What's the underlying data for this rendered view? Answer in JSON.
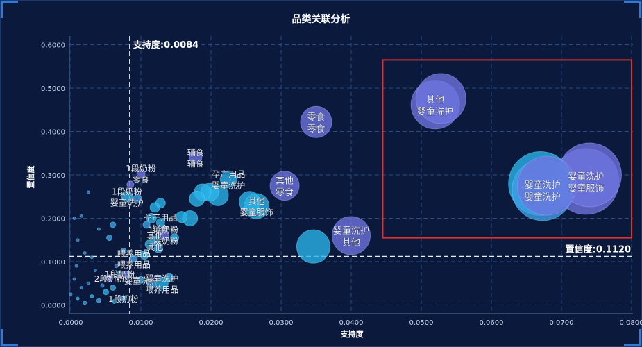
{
  "chart_data": {
    "type": "scatter",
    "title": "品类关联分析",
    "xlabel": "支持度",
    "ylabel": "置信度",
    "xlim": [
      -0.0002,
      0.0802
    ],
    "ylim": [
      -0.02,
      0.62
    ],
    "x_ticks": [
      "0.0000",
      "0.0100",
      "0.0200",
      "0.0300",
      "0.0400",
      "0.0500",
      "0.0600",
      "0.0700",
      "0.0800"
    ],
    "y_ticks": [
      "0.0000",
      "0.1000",
      "0.2000",
      "0.3000",
      "0.4000",
      "0.5000",
      "0.6000"
    ],
    "grid": true,
    "reference_lines": {
      "support_label": "支持度:0.0084",
      "support_value": 0.0084,
      "confidence_label": "置信度:0.1120",
      "confidence_value": 0.112
    },
    "highlight_box": {
      "x_range": [
        0.0445,
        0.08
      ],
      "y_range": [
        0.155,
        0.565
      ],
      "color": "#e0322d"
    },
    "colors": {
      "high": "#6e74e0",
      "mid": "#3fa0e8",
      "low": "#29b6ea",
      "tiny": "#3a7bd5"
    },
    "points": [
      {
        "x": 0.052,
        "y": 0.462,
        "size": 70,
        "group": "high",
        "labels": [
          "其他",
          "婴童洗护"
        ]
      },
      {
        "x": 0.0528,
        "y": 0.476,
        "size": 72,
        "group": "high"
      },
      {
        "x": 0.0735,
        "y": 0.285,
        "size": 95,
        "group": "high",
        "labels": [
          "婴童洗护",
          "婴童服饰"
        ]
      },
      {
        "x": 0.074,
        "y": 0.3,
        "size": 92,
        "group": "high"
      },
      {
        "x": 0.067,
        "y": 0.28,
        "size": 92,
        "group": "low"
      },
      {
        "x": 0.0673,
        "y": 0.265,
        "size": 88,
        "group": "mid",
        "labels": [
          "婴童洗护",
          "婴童洗护"
        ]
      },
      {
        "x": 0.0679,
        "y": 0.275,
        "size": 85,
        "group": "high"
      },
      {
        "x": 0.035,
        "y": 0.422,
        "size": 45,
        "group": "high",
        "labels": [
          "零食",
          "零食"
        ]
      },
      {
        "x": 0.0305,
        "y": 0.275,
        "size": 42,
        "group": "high",
        "labels": [
          "其他",
          "零食"
        ]
      },
      {
        "x": 0.04,
        "y": 0.16,
        "size": 55,
        "group": "high",
        "labels": [
          "婴童洗护",
          "其他"
        ]
      },
      {
        "x": 0.0346,
        "y": 0.135,
        "size": 48,
        "group": "low"
      },
      {
        "x": 0.0265,
        "y": 0.228,
        "size": 36,
        "group": "low",
        "labels": [
          "其他",
          "婴童服饰"
        ]
      },
      {
        "x": 0.0255,
        "y": 0.238,
        "size": 30,
        "group": "low"
      },
      {
        "x": 0.0225,
        "y": 0.29,
        "size": 24,
        "group": "low",
        "labels": [
          "孕产用品",
          "婴童洗护"
        ]
      },
      {
        "x": 0.021,
        "y": 0.253,
        "size": 30,
        "group": "low"
      },
      {
        "x": 0.0198,
        "y": 0.26,
        "size": 26,
        "group": "low"
      },
      {
        "x": 0.0188,
        "y": 0.26,
        "size": 24,
        "group": "low"
      },
      {
        "x": 0.018,
        "y": 0.245,
        "size": 22,
        "group": "low"
      },
      {
        "x": 0.017,
        "y": 0.2,
        "size": 22,
        "group": "low"
      },
      {
        "x": 0.0158,
        "y": 0.203,
        "size": 16,
        "group": "low"
      },
      {
        "x": 0.0178,
        "y": 0.34,
        "size": 18,
        "group": "high",
        "labels": [
          "辅食",
          "辅食"
        ]
      },
      {
        "x": 0.01,
        "y": 0.303,
        "size": 12,
        "group": "high",
        "labels": [
          "1段奶粉",
          "零食"
        ]
      },
      {
        "x": 0.0085,
        "y": 0.278,
        "size": 10,
        "group": "high"
      },
      {
        "x": 0.008,
        "y": 0.25,
        "size": 16,
        "group": "low",
        "labels": [
          "1段奶粉",
          "婴童洗护"
        ]
      },
      {
        "x": 0.0095,
        "y": 0.245,
        "size": 12,
        "group": "mid"
      },
      {
        "x": 0.0128,
        "y": 0.235,
        "size": 14,
        "group": "low"
      },
      {
        "x": 0.012,
        "y": 0.225,
        "size": 14,
        "group": "low"
      },
      {
        "x": 0.0115,
        "y": 0.2,
        "size": 14,
        "group": "low"
      },
      {
        "x": 0.0128,
        "y": 0.19,
        "size": 12,
        "group": "low",
        "labels": [
          "孕产用品",
          "辅食"
        ]
      },
      {
        "x": 0.0108,
        "y": 0.185,
        "size": 10,
        "group": "mid"
      },
      {
        "x": 0.0132,
        "y": 0.162,
        "size": 16,
        "group": "high",
        "labels": [
          "1段奶粉",
          "1段奶粉"
        ]
      },
      {
        "x": 0.0148,
        "y": 0.155,
        "size": 12,
        "group": "low"
      },
      {
        "x": 0.012,
        "y": 0.148,
        "size": 14,
        "group": "low",
        "labels": [
          "其他",
          "其他"
        ]
      },
      {
        "x": 0.0112,
        "y": 0.14,
        "size": 12,
        "group": "low"
      },
      {
        "x": 0.0125,
        "y": 0.13,
        "size": 12,
        "group": "mid"
      },
      {
        "x": 0.0105,
        "y": 0.115,
        "size": 12,
        "group": "low"
      },
      {
        "x": 0.009,
        "y": 0.107,
        "size": 10,
        "group": "mid",
        "labels": [
          "喂养用品",
          "喂养用品"
        ]
      },
      {
        "x": 0.0075,
        "y": 0.125,
        "size": 8,
        "group": "mid"
      },
      {
        "x": 0.006,
        "y": 0.185,
        "size": 8,
        "group": "mid"
      },
      {
        "x": 0.0055,
        "y": 0.155,
        "size": 8,
        "group": "mid"
      },
      {
        "x": 0.013,
        "y": 0.05,
        "size": 18,
        "group": "low",
        "labels": [
          "婴童洗护",
          "喂养用品"
        ]
      },
      {
        "x": 0.0115,
        "y": 0.048,
        "size": 12,
        "group": "mid"
      },
      {
        "x": 0.014,
        "y": 0.063,
        "size": 12,
        "group": "low"
      },
      {
        "x": 0.01,
        "y": 0.058,
        "size": 10,
        "group": "low",
        "labels": [
          "婴童洗护"
        ]
      },
      {
        "x": 0.008,
        "y": 0.07,
        "size": 10,
        "group": "high"
      },
      {
        "x": 0.007,
        "y": 0.072,
        "size": 8,
        "group": "mid",
        "labels": [
          "1段奶粉"
        ]
      },
      {
        "x": 0.0055,
        "y": 0.062,
        "size": 10,
        "group": "high",
        "labels": [
          "2段奶粉"
        ]
      },
      {
        "x": 0.006,
        "y": 0.04,
        "size": 8,
        "group": "mid"
      },
      {
        "x": 0.005,
        "y": 0.03,
        "size": 8,
        "group": "low"
      },
      {
        "x": 0.0075,
        "y": 0.015,
        "size": 8,
        "group": "mid",
        "labels": [
          "1段奶粉"
        ]
      },
      {
        "x": 0.0062,
        "y": 0.008,
        "size": 6,
        "group": "low"
      },
      {
        "x": 0.004,
        "y": 0.01,
        "size": 6,
        "group": "mid"
      },
      {
        "x": 0.003,
        "y": 0.02,
        "size": 5,
        "group": "low"
      },
      {
        "x": 0.002,
        "y": 0.005,
        "size": 5,
        "group": "mid"
      },
      {
        "x": 0.001,
        "y": 0.015,
        "size": 4,
        "group": "low"
      },
      {
        "x": 0.0015,
        "y": 0.04,
        "size": 4,
        "group": "tiny"
      },
      {
        "x": 0.0005,
        "y": 0.06,
        "size": 4,
        "group": "tiny"
      },
      {
        "x": 0.0025,
        "y": 0.05,
        "size": 4,
        "group": "tiny"
      },
      {
        "x": 0.0035,
        "y": 0.08,
        "size": 4,
        "group": "tiny"
      },
      {
        "x": 0.0045,
        "y": 0.045,
        "size": 5,
        "group": "tiny"
      },
      {
        "x": 0.003,
        "y": 0.11,
        "size": 4,
        "group": "tiny"
      },
      {
        "x": 0.001,
        "y": 0.15,
        "size": 4,
        "group": "tiny"
      },
      {
        "x": 0.0005,
        "y": 0.2,
        "size": 4,
        "group": "tiny"
      },
      {
        "x": 0.0015,
        "y": 0.205,
        "size": 4,
        "group": "tiny"
      },
      {
        "x": 0.0025,
        "y": 0.26,
        "size": 4,
        "group": "tiny"
      },
      {
        "x": 0.0,
        "y": 0.025,
        "size": 4,
        "group": "tiny"
      },
      {
        "x": 0.0008,
        "y": 0.09,
        "size": 4,
        "group": "tiny"
      },
      {
        "x": 0.004,
        "y": 0.175,
        "size": 4,
        "group": "tiny"
      },
      {
        "x": 0.002,
        "y": 0.12,
        "size": 4,
        "group": "tiny"
      },
      {
        "x": 0.0065,
        "y": 0.09,
        "size": 5,
        "group": "tiny"
      }
    ]
  }
}
